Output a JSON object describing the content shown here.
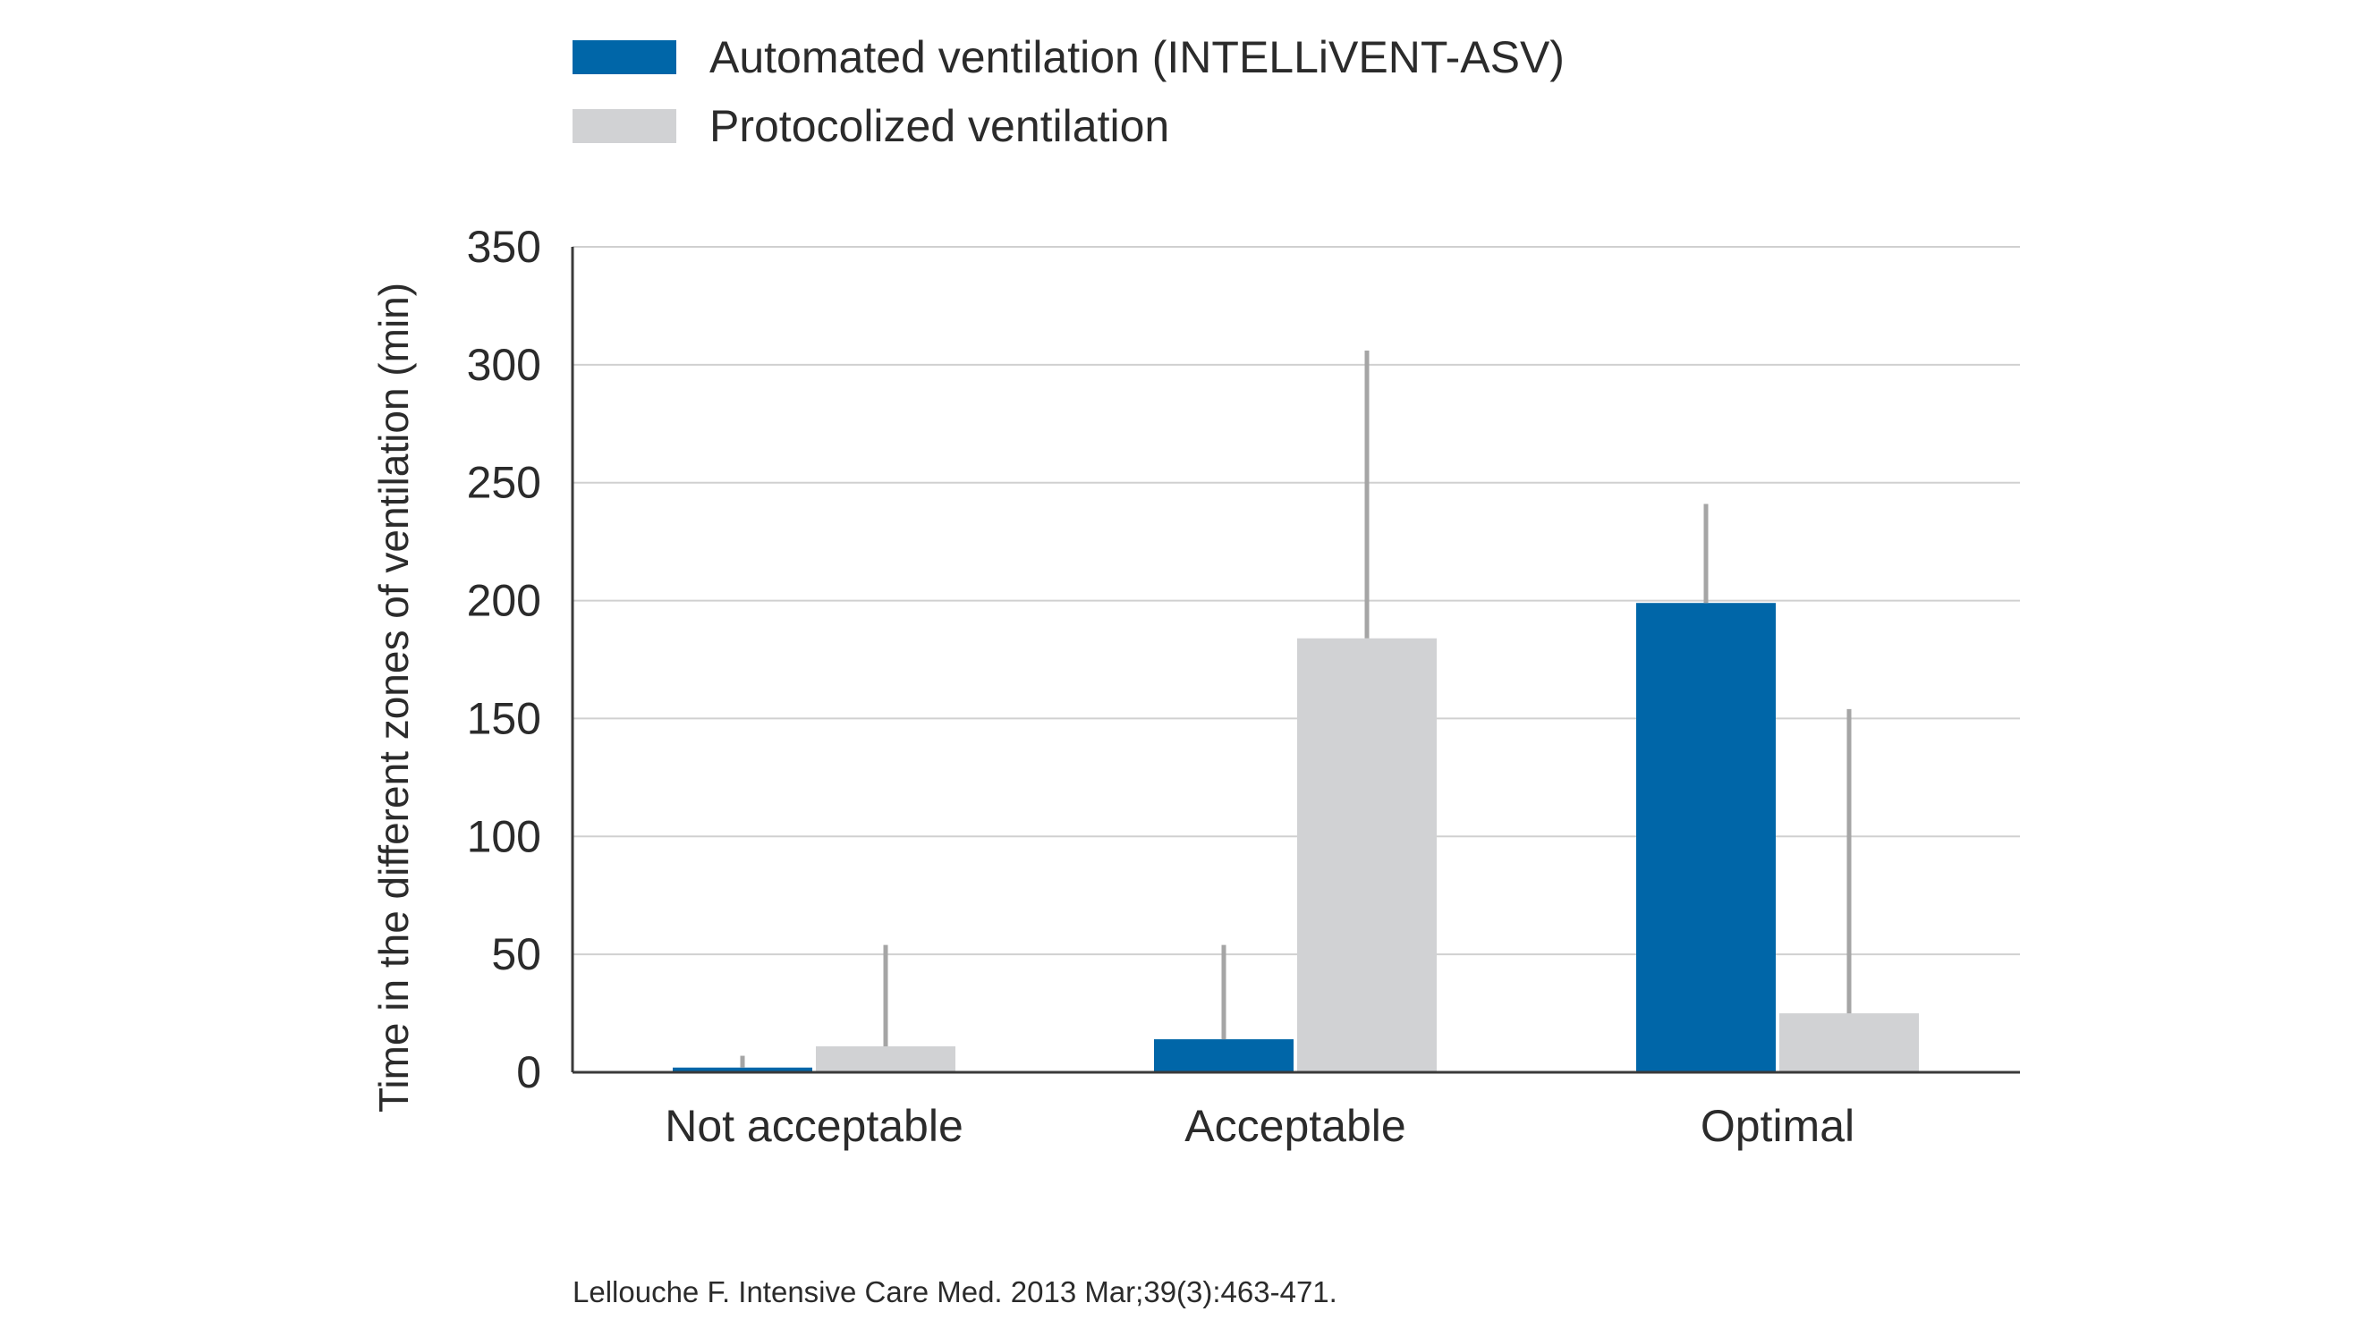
{
  "chart_data": {
    "type": "bar",
    "categories": [
      "Not acceptable",
      "Acceptable",
      "Optimal"
    ],
    "series": [
      {
        "name": "Automated ventilation (INTELLiVENT-ASV)",
        "color": "#0066a8",
        "values": [
          2,
          14,
          199
        ],
        "error_upper": [
          7,
          54,
          241
        ]
      },
      {
        "name": "Protocolized ventilation",
        "color": "#d1d2d4",
        "values": [
          11,
          184,
          25
        ],
        "error_upper": [
          54,
          306,
          154
        ]
      }
    ],
    "title": "",
    "xlabel": "",
    "ylabel": "Time in the different zones of ventilation (min)",
    "ylim": [
      0,
      350
    ],
    "yticks": [
      0,
      50,
      100,
      150,
      200,
      250,
      300,
      350
    ],
    "grid": true,
    "legend_position": "top-left",
    "error_bar_color": "#a5a5a5",
    "axis_color": "#3a3a3a",
    "grid_color": "#d0d0d0"
  },
  "source": "Lellouche F. Intensive Care Med. 2013 Mar;39(3):463-471."
}
